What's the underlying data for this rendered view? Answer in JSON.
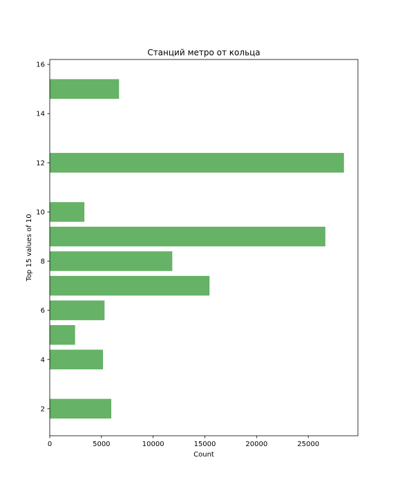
{
  "chart_data": {
    "type": "bar",
    "orientation": "horizontal",
    "title": "Станций метро от кольца",
    "xlabel": "Count",
    "ylabel": "Top 15 values of 10",
    "xlim": [
      0,
      29800
    ],
    "ylim": [
      0.9,
      16.2
    ],
    "xticks": [
      0,
      5000,
      10000,
      15000,
      20000,
      25000
    ],
    "xtick_labels": [
      "0",
      "5000",
      "10000",
      "15000",
      "20000",
      "25000"
    ],
    "yticks": [
      2,
      4,
      6,
      8,
      10,
      12,
      14,
      16
    ],
    "ytick_labels": [
      "2",
      "4",
      "6",
      "8",
      "10",
      "12",
      "14",
      "16"
    ],
    "grid": false,
    "legend": "none",
    "bar_color": "#66b266",
    "bar_height": 0.8,
    "bars": [
      {
        "y": 2,
        "value": 5950
      },
      {
        "y": 4,
        "value": 5150
      },
      {
        "y": 5,
        "value": 2450
      },
      {
        "y": 6,
        "value": 5300
      },
      {
        "y": 7,
        "value": 15450
      },
      {
        "y": 8,
        "value": 11850
      },
      {
        "y": 9,
        "value": 26650
      },
      {
        "y": 10,
        "value": 3350
      },
      {
        "y": 12,
        "value": 28450
      },
      {
        "y": 15,
        "value": 6700
      }
    ]
  }
}
